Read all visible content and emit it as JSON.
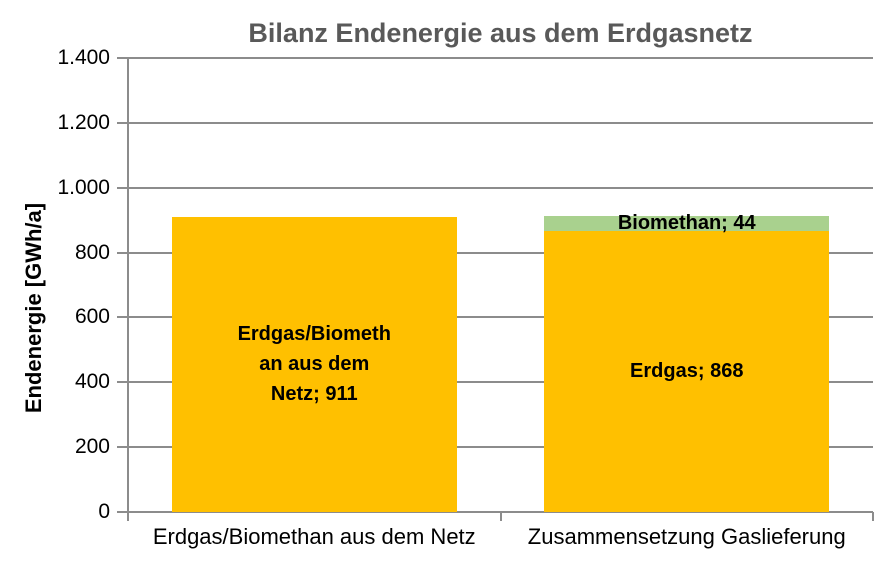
{
  "chart_data": {
    "type": "bar",
    "subtype": "stacked-column",
    "title": "Bilanz Endenergie aus dem Erdgasnetz",
    "ylabel": "Endenergie [GWh/a]",
    "xlabel": "",
    "ylim": [
      0,
      1400
    ],
    "ytick_values": [
      0,
      200,
      400,
      600,
      800,
      1000,
      1200,
      1400
    ],
    "ytick_labels": [
      "0",
      "200",
      "400",
      "600",
      "800",
      "1.000",
      "1.200",
      "1.400"
    ],
    "grid": "horizontal-major-on",
    "legend": "none",
    "categories": [
      "Erdgas/Biomethan aus dem Netz",
      "Zusammensetzung Gaslieferung"
    ],
    "series": [
      {
        "name": "Erdgas/Biomethan aus dem Netz",
        "values": [
          911,
          0
        ]
      },
      {
        "name": "Erdgas",
        "values": [
          0,
          868
        ]
      },
      {
        "name": "Biomethan",
        "values": [
          0,
          44
        ]
      }
    ],
    "bars": [
      {
        "category": "Erdgas/Biomethan aus dem Netz",
        "segments": [
          {
            "name": "Erdgas/Biomethan aus dem Netz",
            "value": 911,
            "color": "#FFC000",
            "label": "Erdgas/Biomethan aus dem Netz; 911",
            "label_lines": [
              "Erdgas/Biometh",
              "an aus dem",
              "Netz; 911"
            ]
          }
        ]
      },
      {
        "category": "Zusammensetzung Gaslieferung",
        "segments": [
          {
            "name": "Erdgas",
            "value": 868,
            "color": "#FFC000",
            "label": "Erdgas; 868",
            "label_lines": [
              "Erdgas; 868"
            ]
          },
          {
            "name": "Biomethan",
            "value": 44,
            "color": "#A9D18E",
            "label": "Biomethan; 44",
            "label_lines": [
              "Biomethan; 44"
            ]
          }
        ]
      }
    ],
    "colors": {
      "erdgas_yellow": "#FFC000",
      "biomethan_green": "#A9D18E",
      "title_gray": "#595959",
      "axis_gray": "#8C8C8C",
      "label_black": "#000000",
      "background": "#FFFFFF"
    }
  }
}
